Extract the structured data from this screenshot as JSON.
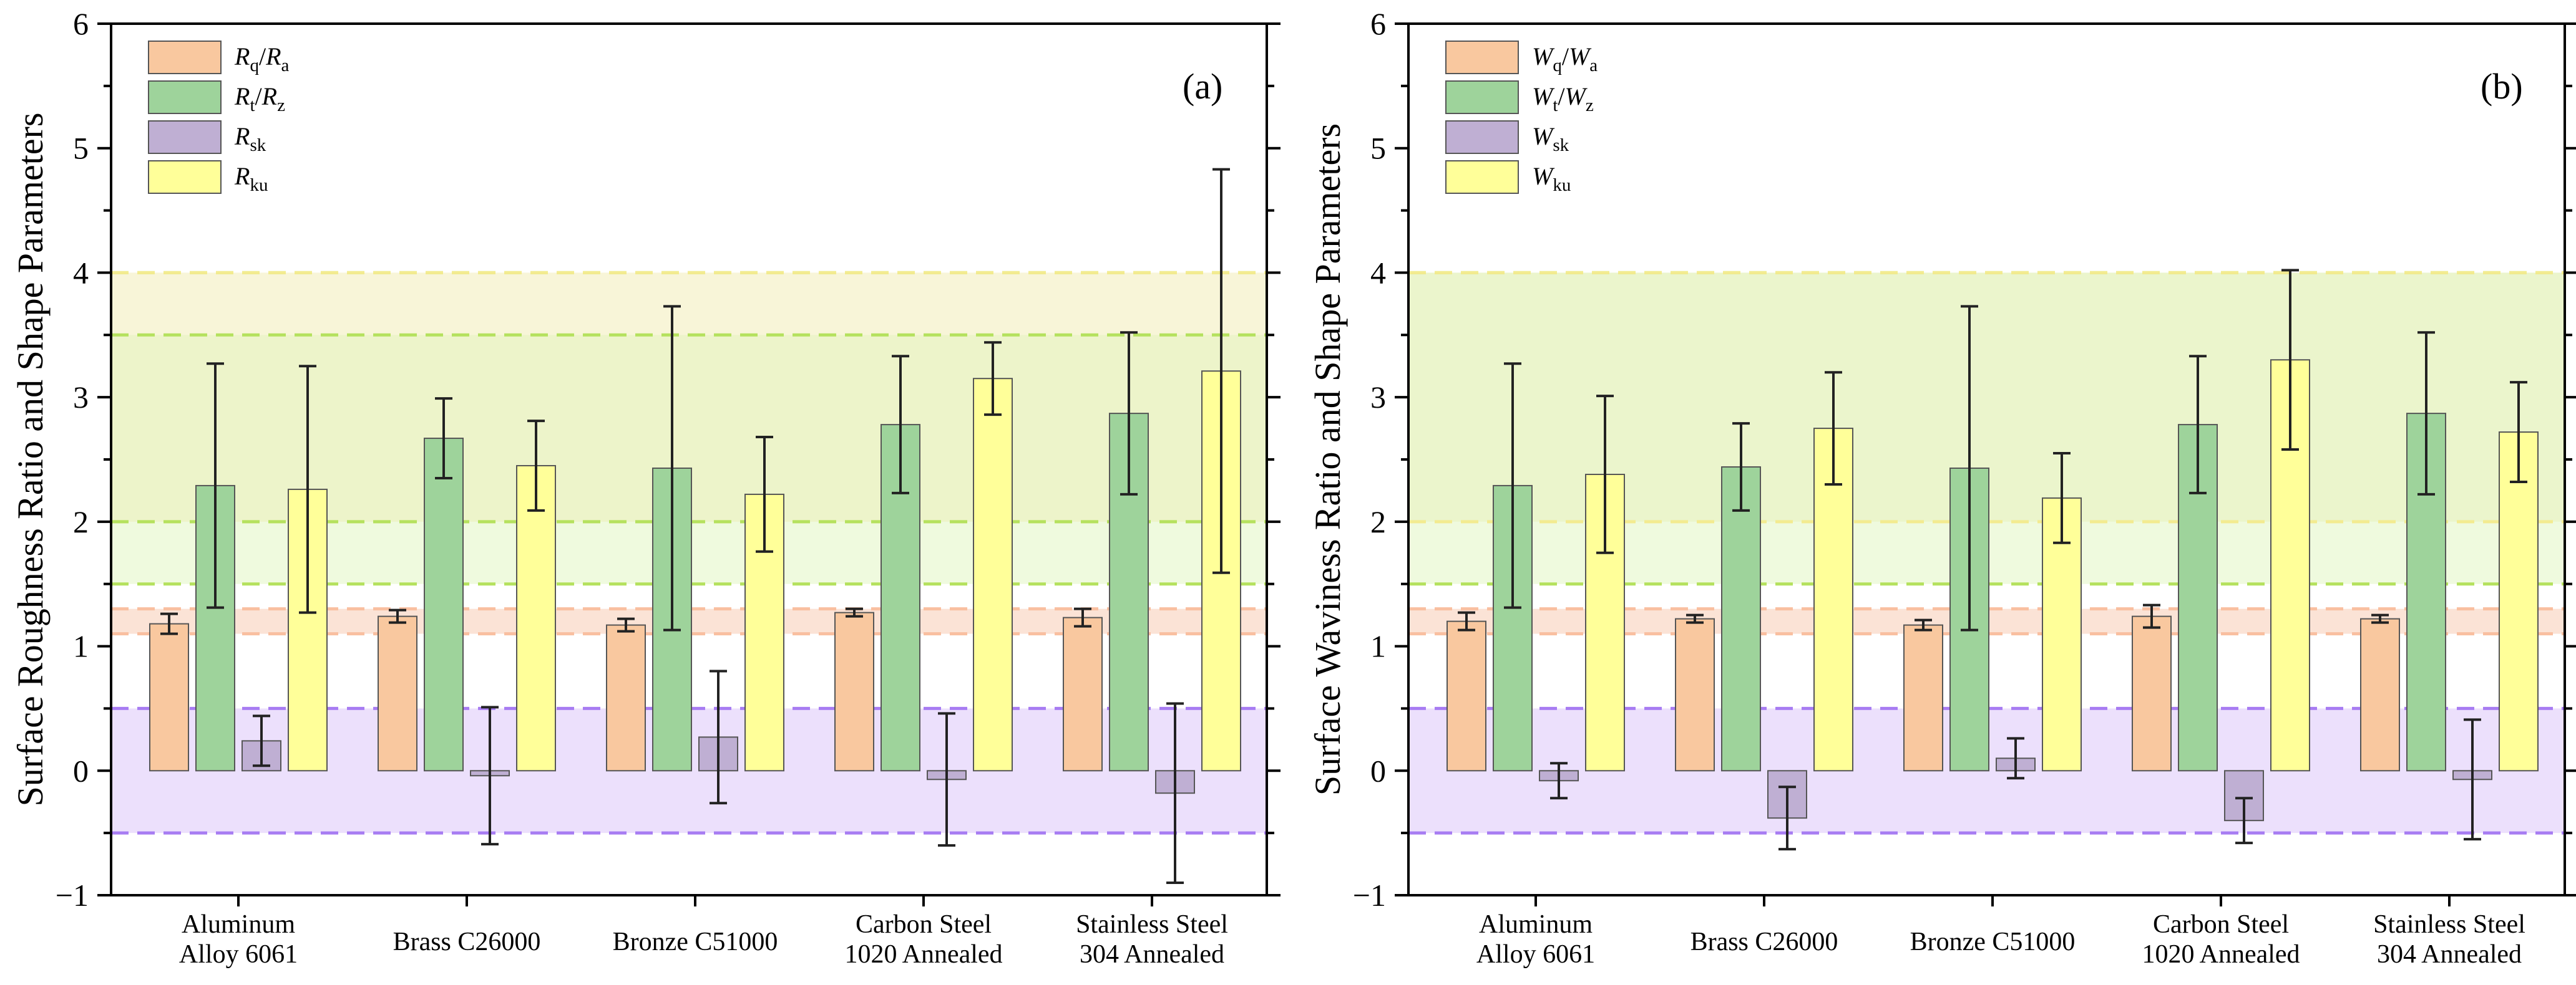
{
  "chart_data": [
    {
      "type": "bar",
      "panel_label": "(a)",
      "ylabel": "Surface Roughness Ratio and Shape Parameters",
      "ylim": [
        -1,
        6
      ],
      "yticks": [
        "−1",
        "0",
        "1",
        "2",
        "3",
        "4",
        "5",
        "6"
      ],
      "categories": [
        [
          "Aluminum",
          "Alloy 6061"
        ],
        [
          "Brass C26000"
        ],
        [
          "Bronze C51000"
        ],
        [
          "Carbon Steel",
          "1020 Annealed"
        ],
        [
          "Stainless Steel",
          "304 Annealed"
        ]
      ],
      "series": [
        {
          "symbol": "R",
          "sub": "q",
          "symbol2": "R",
          "sub2": "a",
          "color": "#F9C89F",
          "values": [
            1.18,
            1.24,
            1.17,
            1.27,
            1.23
          ],
          "errors": [
            0.08,
            0.05,
            0.05,
            0.03,
            0.07
          ]
        },
        {
          "symbol": "R",
          "sub": "t",
          "symbol2": "R",
          "sub2": "z",
          "color": "#9ED39B",
          "values": [
            2.29,
            2.67,
            2.43,
            2.78,
            2.87
          ],
          "errors": [
            0.98,
            0.32,
            1.3,
            0.55,
            0.65
          ]
        },
        {
          "symbol": "R",
          "sub": "sk",
          "color": "#BFAFD3",
          "values": [
            0.24,
            -0.04,
            0.27,
            -0.07,
            -0.18
          ],
          "errors": [
            0.2,
            0.55,
            0.53,
            0.53,
            0.72
          ]
        },
        {
          "symbol": "R",
          "sub": "ku",
          "color": "#FFFF99",
          "values": [
            2.26,
            2.45,
            2.22,
            3.15,
            3.21
          ],
          "errors": [
            0.99,
            0.36,
            0.46,
            0.29,
            1.62
          ]
        }
      ],
      "bands": [
        {
          "from": 1.1,
          "to": 1.3,
          "color": "#FAD9C8",
          "line": "#F9BFA0"
        },
        {
          "from": 1.5,
          "to": 4.0,
          "color": "#E9F8D3",
          "line": "#B5E15E"
        },
        {
          "from": 2.0,
          "to": 4.0,
          "color": "#FBF3D6",
          "line": "#F3EB90"
        },
        {
          "from": 2.0,
          "to": 3.5,
          "color": "#EAF3C5",
          "line": "#B5E15E"
        },
        {
          "from": -0.5,
          "to": 0.5,
          "color": "#E5D6FB",
          "line": "#A77CF2"
        }
      ]
    },
    {
      "type": "bar",
      "panel_label": "(b)",
      "ylabel": "Surface Waviness Ratio and Shape Parameters",
      "ylim": [
        -1,
        6
      ],
      "yticks": [
        "−1",
        "0",
        "1",
        "2",
        "3",
        "4",
        "5",
        "6"
      ],
      "categories": [
        [
          "Aluminum",
          "Alloy 6061"
        ],
        [
          "Brass C26000"
        ],
        [
          "Bronze C51000"
        ],
        [
          "Carbon Steel",
          "1020 Annealed"
        ],
        [
          "Stainless Steel",
          "304 Annealed"
        ]
      ],
      "series": [
        {
          "symbol": "W",
          "sub": "q",
          "symbol2": "W",
          "sub2": "a",
          "color": "#F9C89F",
          "values": [
            1.2,
            1.22,
            1.17,
            1.24,
            1.22
          ],
          "errors": [
            0.07,
            0.03,
            0.04,
            0.09,
            0.03
          ]
        },
        {
          "symbol": "W",
          "sub": "t",
          "symbol2": "W",
          "sub2": "z",
          "color": "#9ED39B",
          "values": [
            2.29,
            2.44,
            2.43,
            2.78,
            2.87
          ],
          "errors": [
            0.98,
            0.35,
            1.3,
            0.55,
            0.65
          ]
        },
        {
          "symbol": "W",
          "sub": "sk",
          "color": "#BFAFD3",
          "values": [
            -0.08,
            -0.38,
            0.1,
            -0.4,
            -0.07
          ],
          "errors": [
            0.14,
            0.25,
            0.16,
            0.18,
            0.48
          ]
        },
        {
          "symbol": "W",
          "sub": "ku",
          "color": "#FFFF99",
          "values": [
            2.38,
            2.75,
            2.19,
            3.3,
            2.72
          ],
          "errors": [
            0.63,
            0.45,
            0.36,
            0.72,
            0.4
          ]
        }
      ],
      "bands": [
        {
          "from": 1.1,
          "to": 1.3,
          "color": "#FAD9C8",
          "line": "#F9BFA0"
        },
        {
          "from": 1.5,
          "to": 4.0,
          "color": "#E9F8D3",
          "line": "#B5E15E"
        },
        {
          "from": 2.0,
          "to": 4.0,
          "color": "#EAF3C5",
          "line": "#F3EB90"
        },
        {
          "from": -0.5,
          "to": 0.5,
          "color": "#E5D6FB",
          "line": "#A77CF2"
        }
      ]
    }
  ]
}
